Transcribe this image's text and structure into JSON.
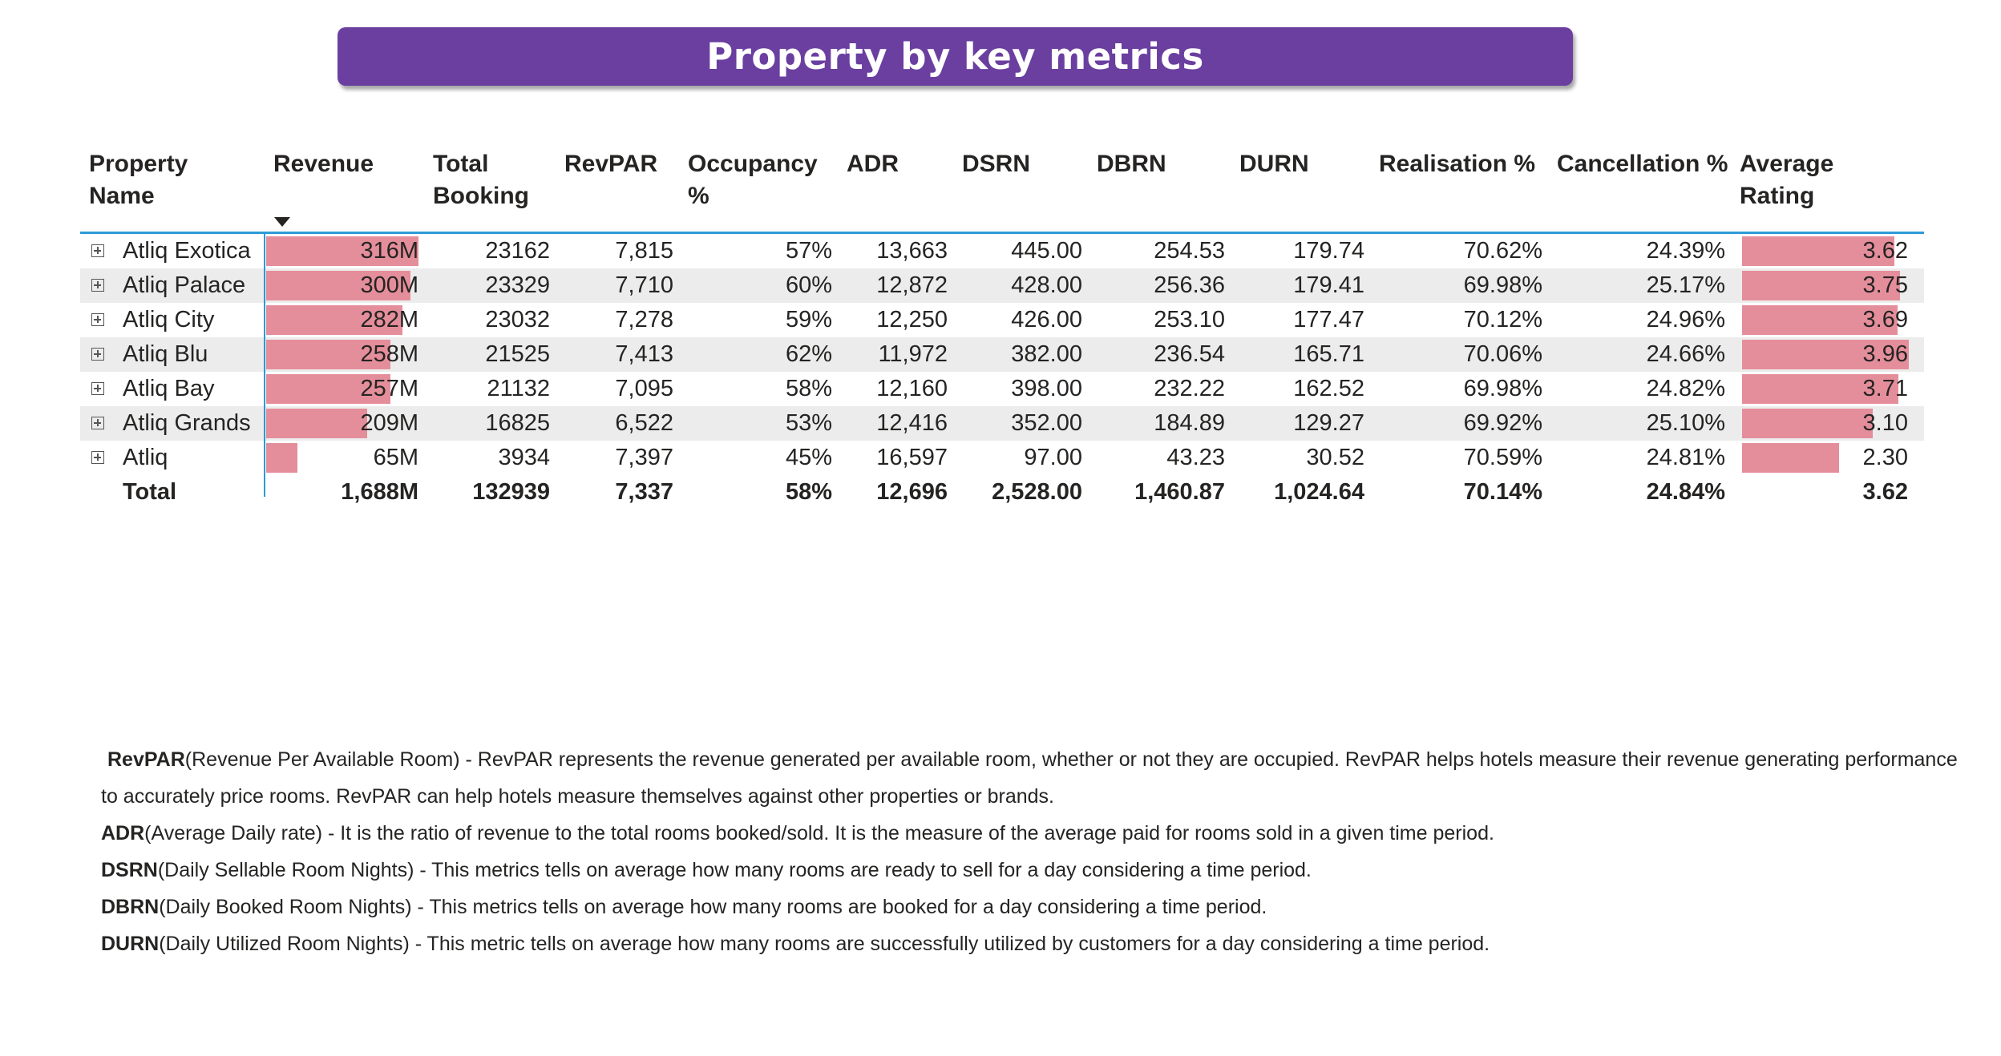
{
  "title": "Property by key metrics",
  "chart_data": {
    "type": "table",
    "columns": [
      "Property Name",
      "Revenue",
      "Total Booking",
      "RevPAR",
      "Occupancy %",
      "ADR",
      "DSRN",
      "DBRN",
      "DURN",
      "Realisation %",
      "Cancellation %",
      "Average Rating"
    ],
    "column_labels": [
      "Property\nName",
      "Revenue",
      "Total\nBooking",
      "RevPAR",
      "Occupancy\n%",
      "ADR",
      "DSRN",
      "DBRN",
      "DURN",
      "Realisation %",
      "Cancellation %",
      "Average\nRating"
    ],
    "sort": {
      "column": "Revenue",
      "direction": "descending"
    },
    "rows": [
      {
        "name": "Atliq Exotica",
        "revenue_label": "316M",
        "revenue": 316,
        "total_booking": "23162",
        "revpar": "7,815",
        "occupancy": "57%",
        "adr": "13,663",
        "dsrn": "445.00",
        "dbrn": "254.53",
        "durn": "179.74",
        "realisation": "70.62%",
        "cancellation": "24.39%",
        "rating_label": "3.62",
        "rating": 3.62
      },
      {
        "name": "Atliq Palace",
        "revenue_label": "300M",
        "revenue": 300,
        "total_booking": "23329",
        "revpar": "7,710",
        "occupancy": "60%",
        "adr": "12,872",
        "dsrn": "428.00",
        "dbrn": "256.36",
        "durn": "179.41",
        "realisation": "69.98%",
        "cancellation": "25.17%",
        "rating_label": "3.75",
        "rating": 3.75
      },
      {
        "name": "Atliq City",
        "revenue_label": "282M",
        "revenue": 282,
        "total_booking": "23032",
        "revpar": "7,278",
        "occupancy": "59%",
        "adr": "12,250",
        "dsrn": "426.00",
        "dbrn": "253.10",
        "durn": "177.47",
        "realisation": "70.12%",
        "cancellation": "24.96%",
        "rating_label": "3.69",
        "rating": 3.69
      },
      {
        "name": "Atliq Blu",
        "revenue_label": "258M",
        "revenue": 258,
        "total_booking": "21525",
        "revpar": "7,413",
        "occupancy": "62%",
        "adr": "11,972",
        "dsrn": "382.00",
        "dbrn": "236.54",
        "durn": "165.71",
        "realisation": "70.06%",
        "cancellation": "24.66%",
        "rating_label": "3.96",
        "rating": 3.96
      },
      {
        "name": "Atliq Bay",
        "revenue_label": "257M",
        "revenue": 257,
        "total_booking": "21132",
        "revpar": "7,095",
        "occupancy": "58%",
        "adr": "12,160",
        "dsrn": "398.00",
        "dbrn": "232.22",
        "durn": "162.52",
        "realisation": "69.98%",
        "cancellation": "24.82%",
        "rating_label": "3.71",
        "rating": 3.71
      },
      {
        "name": "Atliq Grands",
        "revenue_label": "209M",
        "revenue": 209,
        "total_booking": "16825",
        "revpar": "6,522",
        "occupancy": "53%",
        "adr": "12,416",
        "dsrn": "352.00",
        "dbrn": "184.89",
        "durn": "129.27",
        "realisation": "69.92%",
        "cancellation": "25.10%",
        "rating_label": "3.10",
        "rating": 3.1
      },
      {
        "name": "Atliq",
        "revenue_label": "65M",
        "revenue": 65,
        "total_booking": "3934",
        "revpar": "7,397",
        "occupancy": "45%",
        "adr": "16,597",
        "dsrn": "97.00",
        "dbrn": "43.23",
        "durn": "30.52",
        "realisation": "70.59%",
        "cancellation": "24.81%",
        "rating_label": "2.30",
        "rating": 2.3
      }
    ],
    "total": {
      "name": "Total",
      "revenue_label": "1,688M",
      "total_booking": "132939",
      "revpar": "7,337",
      "occupancy": "58%",
      "adr": "12,696",
      "dsrn": "2,528.00",
      "dbrn": "1,460.87",
      "durn": "1,024.64",
      "realisation": "70.14%",
      "cancellation": "24.84%",
      "rating_label": "3.62"
    },
    "data_bars": {
      "columns": [
        "Revenue",
        "Average Rating"
      ],
      "color": "#e58e9b"
    }
  },
  "colors": {
    "title_banner": "#6a3fa0",
    "title_text": "#ffffff",
    "accent_rule": "#2e9ad6",
    "alt_row": "#ececec",
    "data_bar": "#e58e9b"
  },
  "notes": [
    {
      "term": "RevPAR",
      "text": "(Revenue Per Available Room) - RevPAR represents the revenue generated per available room, whether or not they are occupied. RevPAR helps hotels measure their revenue generating performance"
    },
    {
      "term": "",
      "text": "to accurately price rooms. RevPAR can help hotels measure themselves against other properties or brands."
    },
    {
      "term": "ADR",
      "text": "(Average Daily rate) - It is the ratio of revenue to the total rooms booked/sold. It is the measure of the average paid for rooms sold in a given time period."
    },
    {
      "term": "DSRN",
      "text": "(Daily Sellable Room Nights) - This metrics tells on average how many rooms are ready to sell for a day considering a time period."
    },
    {
      "term": "DBRN",
      "text": "(Daily Booked Room Nights) - This metrics tells on average how many rooms are booked for a day considering a time period."
    },
    {
      "term": "DURN",
      "text": "(Daily Utilized Room Nights) - This metric tells on average how many rooms are successfully utilized by customers for a day considering a time period."
    }
  ]
}
